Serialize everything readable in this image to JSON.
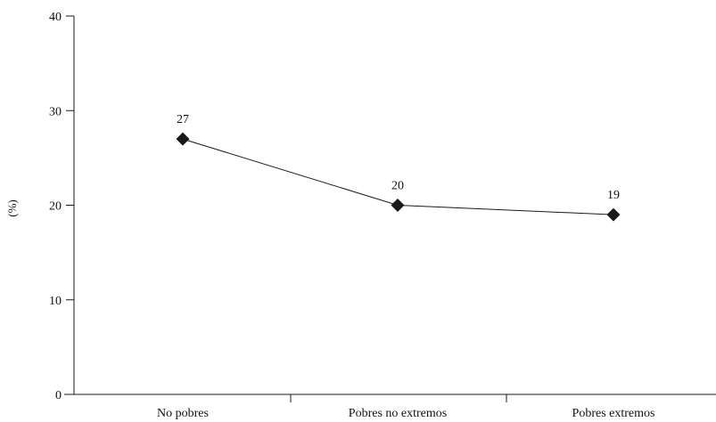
{
  "chart_data": {
    "type": "line",
    "title": "",
    "xlabel": "",
    "ylabel": "(%)",
    "categories": [
      "No pobres",
      "Pobres no extremos",
      "Pobres extremos"
    ],
    "series": [
      {
        "values": [
          27,
          20,
          19
        ]
      }
    ],
    "data_labels": [
      "27",
      "20",
      "19"
    ],
    "yticks": [
      0,
      10,
      20,
      30,
      40
    ],
    "ylim": [
      0,
      40
    ],
    "grid": false,
    "marker": "diamond",
    "line_color": "#1a1a1a"
  }
}
